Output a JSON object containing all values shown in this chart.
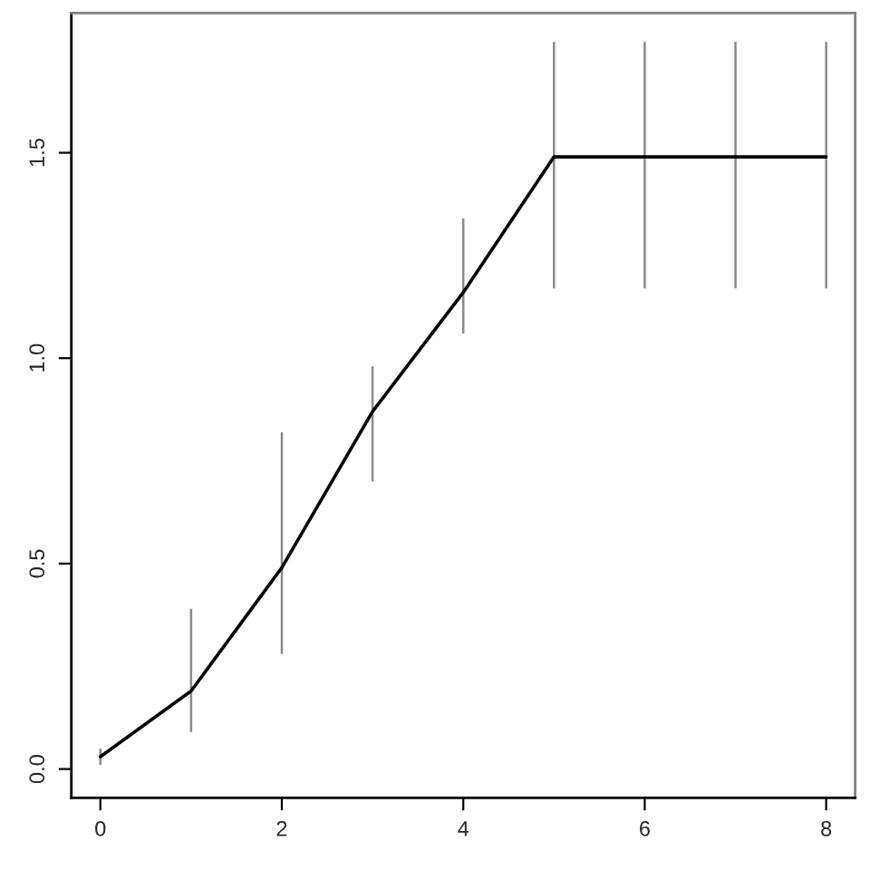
{
  "chart_data": {
    "type": "line",
    "x": [
      0,
      1,
      2,
      3,
      4,
      5,
      6,
      7,
      8
    ],
    "series": [
      {
        "color": "#000000",
        "values": [
          0.03,
          0.19,
          0.49,
          0.87,
          1.16,
          1.49,
          1.49,
          1.49,
          1.49
        ],
        "errors": [
          [
            0.01,
            0.05
          ],
          [
            0.09,
            0.39
          ],
          [
            0.28,
            0.82
          ],
          [
            0.7,
            0.98
          ],
          [
            1.06,
            1.34
          ],
          [
            1.17,
            1.77
          ],
          [
            1.17,
            1.77
          ],
          [
            1.17,
            1.77
          ],
          [
            1.17,
            1.77
          ]
        ]
      }
    ],
    "xlim": [
      -0.32,
      8.32
    ],
    "ylim": [
      -0.07,
      1.84
    ],
    "xticks": [
      0,
      2,
      4,
      6,
      8
    ],
    "yticks": [
      {
        "value": 0,
        "label": "0.0"
      },
      0.5,
      {
        "value": 1,
        "label": "1.0"
      },
      1.5
    ]
  }
}
